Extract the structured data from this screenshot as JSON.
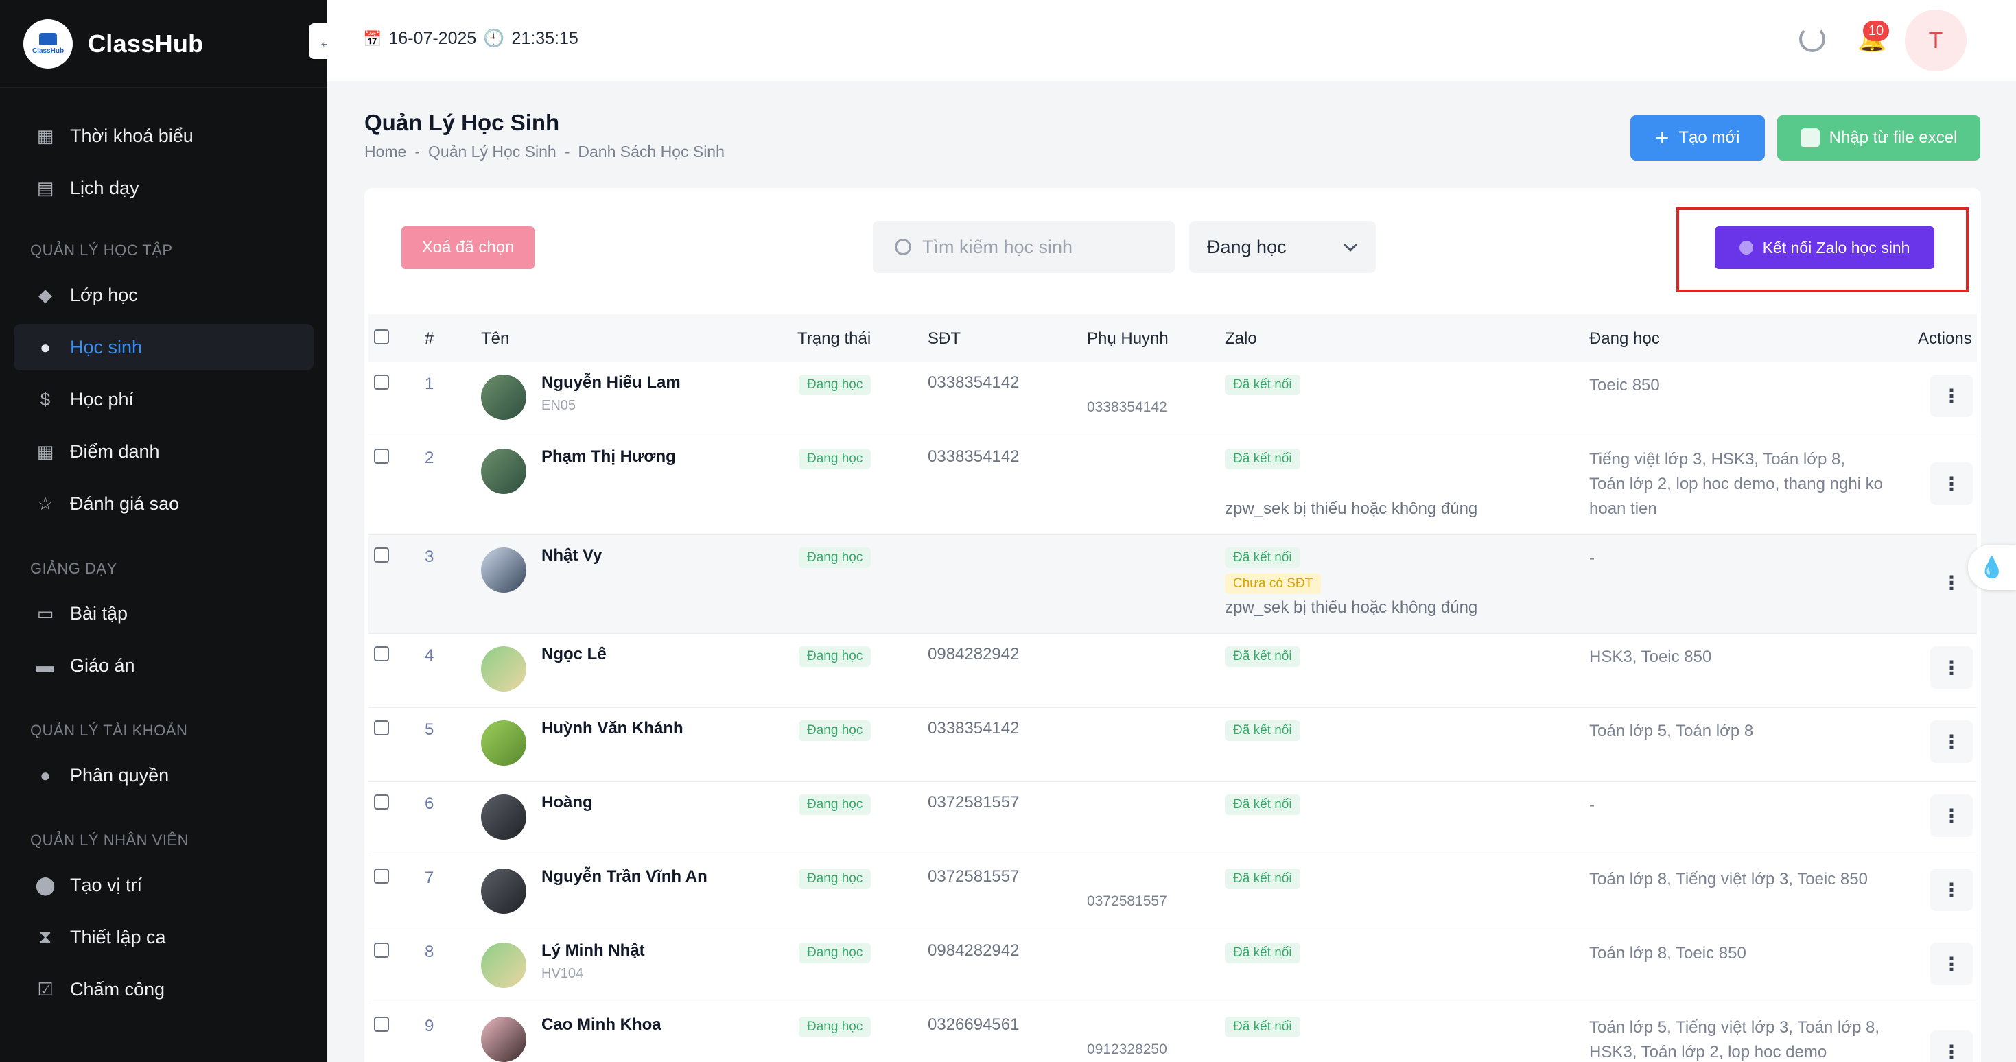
{
  "app": {
    "name": "ClassHub",
    "logo_text": "ClassHub"
  },
  "sidebar": {
    "top_items": [
      {
        "label": "Thời khoá biểu",
        "icon": "calendar-clock-icon"
      },
      {
        "label": "Lịch dạy",
        "icon": "calendar-icon"
      }
    ],
    "sections": [
      {
        "title": "QUẢN LÝ HỌC TẬP",
        "items": [
          {
            "label": "Lớp học",
            "icon": "graduation-cap-icon",
            "active": false
          },
          {
            "label": "Học sinh",
            "icon": "students-icon",
            "active": true
          },
          {
            "label": "Học phí",
            "icon": "coin-icon",
            "active": false
          },
          {
            "label": "Điểm danh",
            "icon": "attendance-icon",
            "active": false
          },
          {
            "label": "Đánh giá sao",
            "icon": "star-icon",
            "active": false
          }
        ]
      },
      {
        "title": "GIẢNG DẠY",
        "items": [
          {
            "label": "Bài tập",
            "icon": "clipboard-icon"
          },
          {
            "label": "Giáo án",
            "icon": "book-icon"
          }
        ]
      },
      {
        "title": "QUẢN LÝ TÀI KHOẢN",
        "items": [
          {
            "label": "Phân quyền",
            "icon": "user-key-icon"
          }
        ]
      },
      {
        "title": "QUẢN LÝ NHÂN VIÊN",
        "items": [
          {
            "label": "Tạo vị trí",
            "icon": "location-pin-icon"
          },
          {
            "label": "Thiết lập ca",
            "icon": "hourglass-icon"
          },
          {
            "label": "Chấm công",
            "icon": "check-square-icon"
          }
        ]
      }
    ]
  },
  "topbar": {
    "date": "16-07-2025",
    "time": "21:35:15",
    "notification_count": "10",
    "avatar_initial": "T"
  },
  "page": {
    "title": "Quản Lý Học Sinh",
    "breadcrumb": [
      "Home",
      "-",
      "Quản Lý Học Sinh",
      "-",
      "Danh Sách Học Sinh"
    ],
    "create_button": "Tạo mới",
    "import_button": "Nhập từ file excel"
  },
  "toolbar": {
    "delete_selected": "Xoá đã chọn",
    "search_placeholder": "Tìm kiếm học sinh",
    "status_filter": "Đang học",
    "zalo_connect": "Kết nối Zalo học sinh"
  },
  "table": {
    "headers": {
      "index": "#",
      "name": "Tên",
      "status": "Trạng thái",
      "phone": "SĐT",
      "parent": "Phụ Huynh",
      "zalo": "Zalo",
      "studying": "Đang học",
      "actions": "Actions"
    },
    "rows": [
      {
        "index": "1",
        "name": "Nguyễn Hiếu Lam",
        "code": "EN05",
        "status": "Đang học",
        "phone": "0338354142",
        "parent": "0338354142",
        "zalo": "Đã kết nối",
        "zalo_warn": "",
        "zalo_error": "",
        "studying": "Toeic 850"
      },
      {
        "index": "2",
        "name": "Phạm Thị Hương",
        "code": "",
        "status": "Đang học",
        "phone": "0338354142",
        "parent": "",
        "zalo": "Đã kết nối",
        "zalo_warn": "",
        "zalo_error": "zpw_sek bị thiếu hoặc không đúng",
        "studying": "Tiếng việt lớp 3, HSK3, Toán lớp 8, Toán lớp 2, lop hoc demo, thang nghi ko hoan tien"
      },
      {
        "index": "3",
        "name": "Nhật Vy",
        "code": "",
        "status": "Đang học",
        "phone": "",
        "parent": "",
        "zalo": "Đã kết nối",
        "zalo_warn": "Chưa có SĐT",
        "zalo_error": "zpw_sek bị thiếu hoặc không đúng",
        "studying": "-"
      },
      {
        "index": "4",
        "name": "Ngọc Lê",
        "code": "",
        "status": "Đang học",
        "phone": "0984282942",
        "parent": "",
        "zalo": "Đã kết nối",
        "zalo_warn": "",
        "zalo_error": "",
        "studying": "HSK3, Toeic 850"
      },
      {
        "index": "5",
        "name": "Huỳnh Văn Khánh",
        "code": "",
        "status": "Đang học",
        "phone": "0338354142",
        "parent": "",
        "zalo": "Đã kết nối",
        "zalo_warn": "",
        "zalo_error": "",
        "studying": "Toán lớp 5, Toán lớp 8"
      },
      {
        "index": "6",
        "name": "Hoàng",
        "code": "",
        "status": "Đang học",
        "phone": "0372581557",
        "parent": "",
        "zalo": "Đã kết nối",
        "zalo_warn": "",
        "zalo_error": "",
        "studying": "-"
      },
      {
        "index": "7",
        "name": "Nguyễn Trần Vĩnh An",
        "code": "",
        "status": "Đang học",
        "phone": "0372581557",
        "parent": "0372581557",
        "zalo": "Đã kết nối",
        "zalo_warn": "",
        "zalo_error": "",
        "studying": "Toán lớp 8, Tiếng việt lớp 3, Toeic 850"
      },
      {
        "index": "8",
        "name": "Lý Minh Nhật",
        "code": "HV104",
        "status": "Đang học",
        "phone": "0984282942",
        "parent": "",
        "zalo": "Đã kết nối",
        "zalo_warn": "",
        "zalo_error": "",
        "studying": "Toán lớp 8, Toeic 850"
      },
      {
        "index": "9",
        "name": "Cao Minh Khoa",
        "code": "",
        "status": "Đang học",
        "phone": "0326694561",
        "parent": "0912328250",
        "zalo": "Đã kết nối",
        "zalo_warn": "",
        "zalo_error": "",
        "studying": "Toán lớp 5, Tiếng việt lớp 3, Toán lớp 8, HSK3, Toán lớp 2, lop hoc demo"
      }
    ]
  },
  "colors": {
    "primary": "#3b8ff3",
    "success": "#58c98a",
    "danger": "#f58fa3",
    "zalo": "#6a35e8",
    "highlight": "#e02424",
    "sidebar": "#111214"
  }
}
